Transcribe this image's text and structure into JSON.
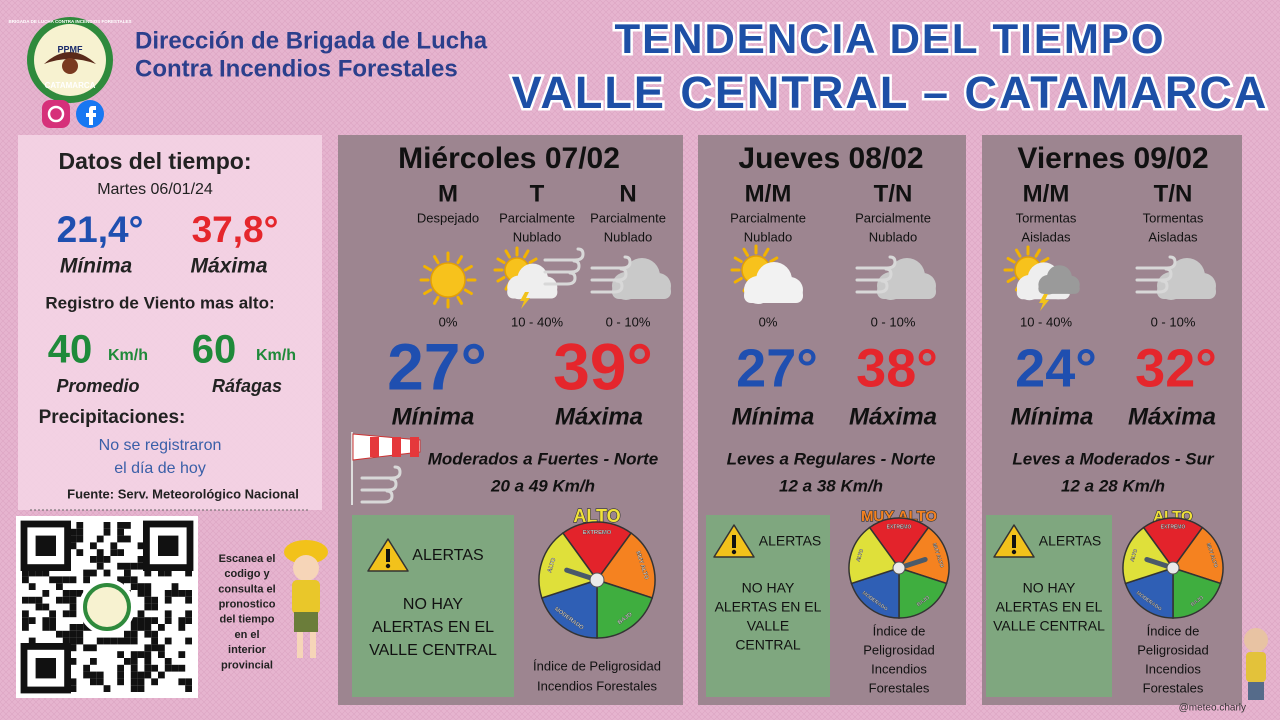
{
  "header": {
    "org": [
      "Dirección de Brigada de Lucha",
      "Contra Incendios Forestales"
    ],
    "logo": {
      "top": "BRIGADA DE LUCHA CONTRA INCENDIOS FORESTALES",
      "center": "PPMF",
      "bottom": "CATAMARCA"
    },
    "title": [
      "TENDENCIA DEL TIEMPO",
      "VALLE CENTRAL – CATAMARCA"
    ]
  },
  "today": {
    "title": "Datos del tiempo:",
    "date": "Martes 06/01/24",
    "min": "21,4°",
    "max": "37,8°",
    "min_label": "Mínima",
    "max_label": "Máxima",
    "wind_title": "Registro de Viento mas alto:",
    "wind_avg": "40",
    "wind_gust": "60",
    "wind_unit": "Km/h",
    "avg_label": "Promedio",
    "gust_label": "Ráfagas",
    "precip_title": "Precipitaciones:",
    "precip_text": [
      "No se registraron",
      "el día de hoy"
    ],
    "source": "Fuente: Serv. Meteorológico Nacional"
  },
  "qr_caption": [
    "Escanea el",
    "codigo y",
    "consulta el",
    "pronostico",
    "del tiempo",
    "en el",
    "interior",
    "provincial"
  ],
  "gauge_labels": [
    "EXTREMO",
    "MUY ALTO",
    "BAJO",
    "MODERADO",
    "ALTO"
  ],
  "days": [
    {
      "name": "Miércoles 07/02",
      "periods": [
        {
          "label": "M",
          "desc": [
            "Despejado"
          ],
          "prob": "0%"
        },
        {
          "label": "T",
          "desc": [
            "Parcialmente",
            "Nublado"
          ],
          "prob": "10 - 40%"
        },
        {
          "label": "N",
          "desc": [
            "Parcialmente",
            "Nublado"
          ],
          "prob": "0 - 10%"
        }
      ],
      "min": "27°",
      "max": "39°",
      "min_label": "Mínima",
      "max_label": "Máxima",
      "wind": [
        "Moderados a Fuertes - Norte",
        "20 a 49 Km/h"
      ],
      "alert_title": "ALERTAS",
      "alert_text": [
        "NO HAY",
        "ALERTAS EN EL",
        "VALLE CENTRAL"
      ],
      "danger": "ALTO",
      "index_label": [
        "Índice de Peligrosidad",
        "Incendios Forestales"
      ]
    },
    {
      "name": "Jueves 08/02",
      "periods": [
        {
          "label": "M/M",
          "desc": [
            "Parcialmente",
            "Nublado"
          ],
          "prob": "0%"
        },
        {
          "label": "T/N",
          "desc": [
            "Parcialmente",
            "Nublado"
          ],
          "prob": "0 - 10%"
        }
      ],
      "min": "27°",
      "max": "38°",
      "min_label": "Mínima",
      "max_label": "Máxima",
      "wind": [
        "Leves a Regulares - Norte",
        "12 a 38 Km/h"
      ],
      "alert_title": "ALERTAS",
      "alert_text": [
        "NO HAY",
        "ALERTAS EN EL",
        "VALLE",
        "CENTRAL"
      ],
      "danger": "MUY ALTO",
      "index_label": [
        "Índice de",
        "Peligrosidad",
        "Incendios",
        "Forestales"
      ]
    },
    {
      "name": "Viernes 09/02",
      "periods": [
        {
          "label": "M/M",
          "desc": [
            "Tormentas",
            "Aisladas"
          ],
          "prob": "10 - 40%"
        },
        {
          "label": "T/N",
          "desc": [
            "Tormentas",
            "Aisladas"
          ],
          "prob": "0 - 10%"
        }
      ],
      "min": "24°",
      "max": "32°",
      "min_label": "Mínima",
      "max_label": "Máxima",
      "wind": [
        "Leves a Moderados - Sur",
        "12 a 28 Km/h"
      ],
      "alert_title": "ALERTAS",
      "alert_text": [
        "NO HAY",
        "ALERTAS EN EL",
        "VALLE CENTRAL"
      ],
      "danger": "ALTO",
      "index_label": [
        "Índice de",
        "Peligrosidad",
        "Incendios",
        "Forestales"
      ]
    }
  ],
  "credit": "@meteo.charly"
}
